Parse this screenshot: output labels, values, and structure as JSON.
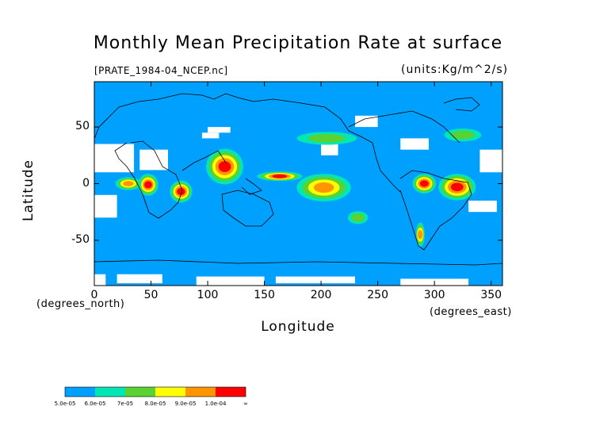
{
  "chart_data": {
    "type": "heatmap",
    "title": "Monthly Mean Precipitation Rate at surface",
    "file_label": "[PRATE_1984-04_NCEP.nc]",
    "units_label": "(units:Kg/m^2/s)",
    "xlabel": "Longitude",
    "x_units": "(degrees_east)",
    "ylabel": "Latitude",
    "y_units": "(degrees_north)",
    "xlim": [
      0,
      360
    ],
    "ylim": [
      -90,
      90
    ],
    "x_ticks": [
      0,
      50,
      100,
      150,
      200,
      250,
      300,
      350
    ],
    "y_ticks": [
      50,
      0,
      -50
    ],
    "colorbar": {
      "labels": [
        "5.0e-05",
        "6.0e-05",
        "7e-05",
        "8.0e-05",
        "9.0e-05",
        "1.0e-04",
        "∞"
      ],
      "colors": [
        "#00a0ff",
        "#00e6b4",
        "#5ad232",
        "#ffff00",
        "#ff9600",
        "#ff0000"
      ]
    },
    "background_color": "#00a0ff",
    "missing_color": "#ffffff",
    "regions": [
      {
        "level": "high",
        "lon": [
          305,
          335
        ],
        "lat": [
          -14,
          8
        ]
      },
      {
        "level": "high",
        "lon": [
          282,
          300
        ],
        "lat": [
          -8,
          8
        ]
      },
      {
        "level": "high",
        "lon": [
          145,
          182
        ],
        "lat": [
          3,
          10
        ]
      },
      {
        "level": "high",
        "lon": [
          68,
          85
        ],
        "lat": [
          -16,
          2
        ]
      },
      {
        "level": "high",
        "lon": [
          100,
          130
        ],
        "lat": [
          0,
          30
        ]
      },
      {
        "level": "high",
        "lon": [
          40,
          55
        ],
        "lat": [
          -10,
          8
        ]
      },
      {
        "level": "moderate",
        "lon": [
          180,
          225
        ],
        "lat": [
          -15,
          8
        ]
      },
      {
        "level": "moderate",
        "lon": [
          20,
          40
        ],
        "lat": [
          -5,
          5
        ]
      },
      {
        "level": "moderate",
        "lon": [
          285,
          290
        ],
        "lat": [
          -55,
          -35
        ]
      },
      {
        "level": "light",
        "lon": [
          310,
          340
        ],
        "lat": [
          38,
          48
        ]
      },
      {
        "level": "light",
        "lon": [
          180,
          230
        ],
        "lat": [
          35,
          45
        ]
      },
      {
        "level": "light",
        "lon": [
          225,
          240
        ],
        "lat": [
          -35,
          -25
        ]
      }
    ]
  }
}
